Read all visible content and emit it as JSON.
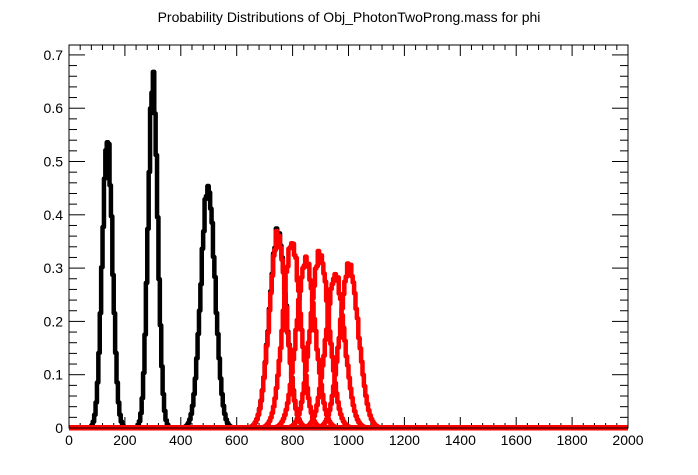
{
  "chart_data": {
    "type": "line",
    "title": "Probability Distributions of Obj_PhotonTwoProng.mass for phi",
    "xlabel": "",
    "ylabel": "",
    "xlim": [
      0,
      2000
    ],
    "ylim": [
      0,
      0.7
    ],
    "x_ticks": [
      "0",
      "200",
      "400",
      "600",
      "800",
      "1000",
      "1200",
      "1400",
      "1600",
      "1800",
      "2000"
    ],
    "y_ticks": [
      "0",
      "0.1",
      "0.2",
      "0.3",
      "0.4",
      "0.5",
      "0.6",
      "0.7"
    ],
    "grid": false,
    "legend": "none",
    "series": [
      {
        "color": "#000000",
        "peak_x": 135,
        "peak_y": 0.565,
        "width": 18
      },
      {
        "color": "#000000",
        "peak_x": 298,
        "peak_y": 0.68,
        "width": 17
      },
      {
        "color": "#000000",
        "peak_x": 495,
        "peak_y": 0.47,
        "width": 25
      },
      {
        "color": "#000000",
        "peak_x": 745,
        "peak_y": 0.38,
        "width": 30
      },
      {
        "color": "#ff0000",
        "peak_x": 745,
        "peak_y": 0.375,
        "width": 30
      },
      {
        "color": "#ff0000",
        "peak_x": 795,
        "peak_y": 0.362,
        "width": 31
      },
      {
        "color": "#ff0000",
        "peak_x": 845,
        "peak_y": 0.326,
        "width": 33
      },
      {
        "color": "#ff0000",
        "peak_x": 895,
        "peak_y": 0.338,
        "width": 33
      },
      {
        "color": "#ff0000",
        "peak_x": 950,
        "peak_y": 0.297,
        "width": 33
      },
      {
        "color": "#ff0000",
        "peak_x": 1000,
        "peak_y": 0.315,
        "width": 33
      }
    ]
  }
}
